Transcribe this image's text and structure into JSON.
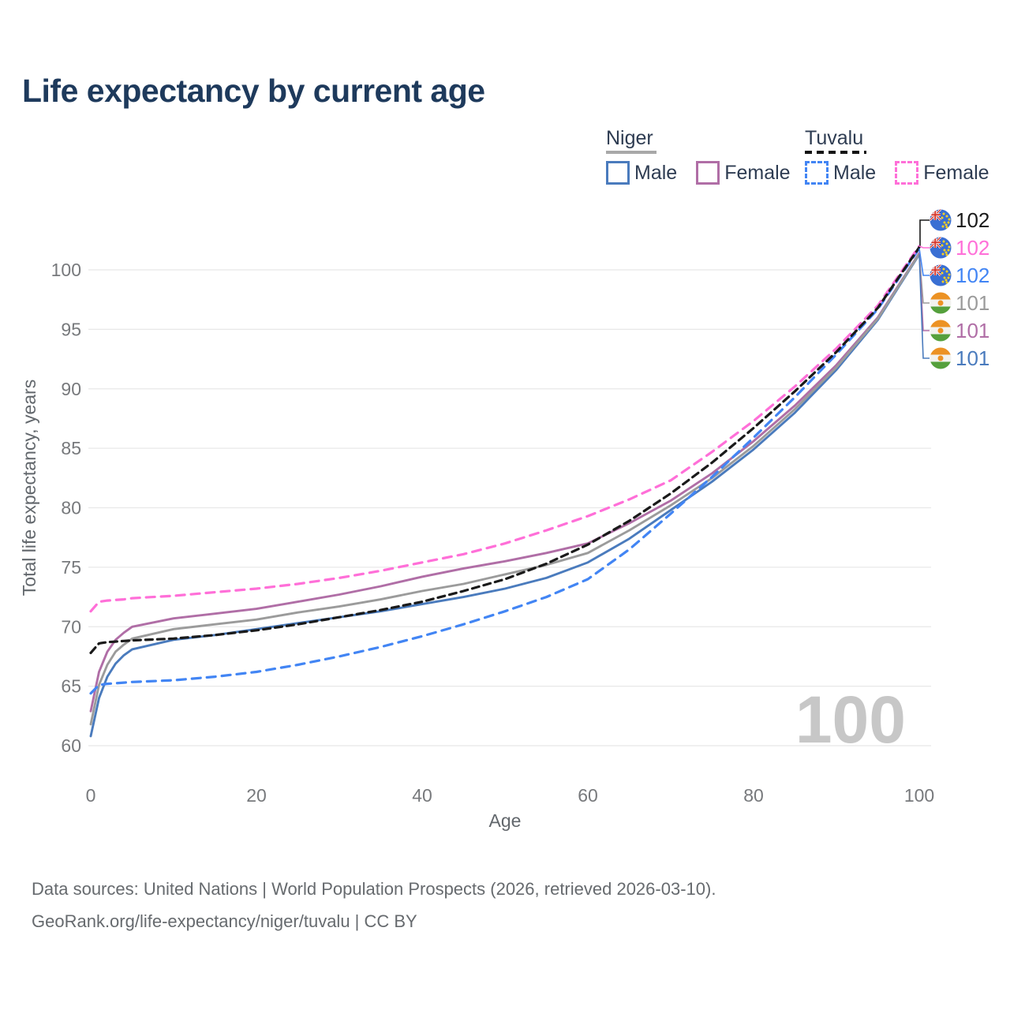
{
  "title": "Life expectancy by current age",
  "watermark_age": "100",
  "legend": {
    "groups": [
      {
        "name": "Niger",
        "line_style": "solid",
        "underline_color": "#a8a8a8",
        "items": [
          {
            "label": "Male",
            "color": "#4a7bbd"
          },
          {
            "label": "Female",
            "color": "#b06ea6"
          }
        ]
      },
      {
        "name": "Tuvalu",
        "line_style": "dashed",
        "underline_color": "#141414",
        "items": [
          {
            "label": "Male",
            "color": "#4285f4"
          },
          {
            "label": "Female",
            "color": "#ff6fd8"
          }
        ]
      }
    ]
  },
  "footer": {
    "line1": "Data sources: United Nations | World Population Prospects (2026, retrieved 2026-03-10).",
    "line2": "GeoRank.org/life-expectancy/niger/tuvalu | CC BY"
  },
  "chart_data": {
    "type": "line",
    "title": "Life expectancy by current age",
    "xlabel": "Age",
    "ylabel": "Total life expectancy, years",
    "xlim": [
      0,
      100
    ],
    "ylim": [
      60,
      100
    ],
    "xticks": [
      0,
      20,
      40,
      60,
      80,
      100
    ],
    "yticks": [
      60,
      65,
      70,
      75,
      80,
      85,
      90,
      95,
      100
    ],
    "grid": "horizontal-only",
    "legend_position": "top-right",
    "x": [
      0,
      1,
      2,
      3,
      4,
      5,
      10,
      15,
      20,
      25,
      30,
      35,
      40,
      45,
      50,
      55,
      60,
      65,
      70,
      75,
      80,
      85,
      90,
      95,
      100
    ],
    "series": [
      {
        "name": "Niger Male",
        "country": "Niger",
        "sex": "Male",
        "color": "#4a7bbd",
        "line_style": "solid",
        "values": [
          60.8,
          64.0,
          65.8,
          66.9,
          67.6,
          68.1,
          68.9,
          69.3,
          69.8,
          70.3,
          70.8,
          71.3,
          71.9,
          72.5,
          73.2,
          74.1,
          75.4,
          77.4,
          79.8,
          82.2,
          84.9,
          88.0,
          91.6,
          95.8,
          101.3
        ]
      },
      {
        "name": "Niger Female",
        "country": "Niger",
        "sex": "Female",
        "color": "#b06ea6",
        "line_style": "solid",
        "values": [
          62.9,
          66.2,
          67.9,
          68.9,
          69.5,
          70.0,
          70.7,
          71.1,
          71.5,
          72.1,
          72.7,
          73.4,
          74.2,
          74.9,
          75.5,
          76.2,
          77.0,
          78.7,
          80.6,
          82.9,
          85.6,
          88.6,
          92.0,
          96.0,
          101.4
        ]
      },
      {
        "name": "Niger Both sexes",
        "country": "Niger",
        "sex": "Both",
        "color": "#9b9b9b",
        "line_style": "solid",
        "values": [
          61.8,
          65.1,
          66.8,
          67.9,
          68.5,
          69.0,
          69.8,
          70.2,
          70.6,
          71.2,
          71.7,
          72.3,
          73.0,
          73.6,
          74.4,
          75.2,
          76.2,
          78.1,
          80.2,
          82.5,
          85.2,
          88.3,
          91.8,
          95.9,
          101.35
        ]
      },
      {
        "name": "Tuvalu Male",
        "country": "Tuvalu",
        "sex": "Male",
        "color": "#4285f4",
        "line_style": "dashed",
        "values": [
          64.4,
          65.1,
          65.2,
          65.25,
          65.3,
          65.35,
          65.5,
          65.8,
          66.2,
          66.8,
          67.5,
          68.3,
          69.2,
          70.2,
          71.3,
          72.5,
          74.0,
          76.5,
          79.5,
          82.6,
          85.9,
          89.3,
          92.9,
          96.7,
          101.8
        ]
      },
      {
        "name": "Tuvalu Female",
        "country": "Tuvalu",
        "sex": "Female",
        "color": "#ff6fd8",
        "line_style": "dashed",
        "values": [
          71.3,
          72.1,
          72.2,
          72.25,
          72.3,
          72.4,
          72.6,
          72.9,
          73.2,
          73.6,
          74.1,
          74.7,
          75.4,
          76.1,
          77.0,
          78.1,
          79.3,
          80.7,
          82.3,
          84.7,
          87.3,
          90.2,
          93.4,
          97.0,
          102.0
        ]
      },
      {
        "name": "Tuvalu Both sexes",
        "country": "Tuvalu",
        "sex": "Both",
        "color": "#1a1a1a",
        "line_style": "dashed",
        "values": [
          67.8,
          68.6,
          68.7,
          68.75,
          68.8,
          68.85,
          69.0,
          69.3,
          69.7,
          70.2,
          70.8,
          71.4,
          72.1,
          73.0,
          74.0,
          75.3,
          76.9,
          78.9,
          81.2,
          83.8,
          86.7,
          89.8,
          93.1,
          96.8,
          101.9
        ]
      }
    ],
    "end_labels": [
      {
        "value": "102",
        "color": "#1a1a1a",
        "flag": "tuvalu",
        "series": "Tuvalu Both sexes"
      },
      {
        "value": "102",
        "color": "#ff6fd8",
        "flag": "tuvalu",
        "series": "Tuvalu Female"
      },
      {
        "value": "102",
        "color": "#4285f4",
        "flag": "tuvalu",
        "series": "Tuvalu Male"
      },
      {
        "value": "101",
        "color": "#9b9b9b",
        "flag": "niger",
        "series": "Niger Both sexes"
      },
      {
        "value": "101",
        "color": "#b06ea6",
        "flag": "niger",
        "series": "Niger Female"
      },
      {
        "value": "101",
        "color": "#4a7bbd",
        "flag": "niger",
        "series": "Niger Male"
      }
    ],
    "annotations": {
      "current_age_ticker": "100"
    }
  }
}
